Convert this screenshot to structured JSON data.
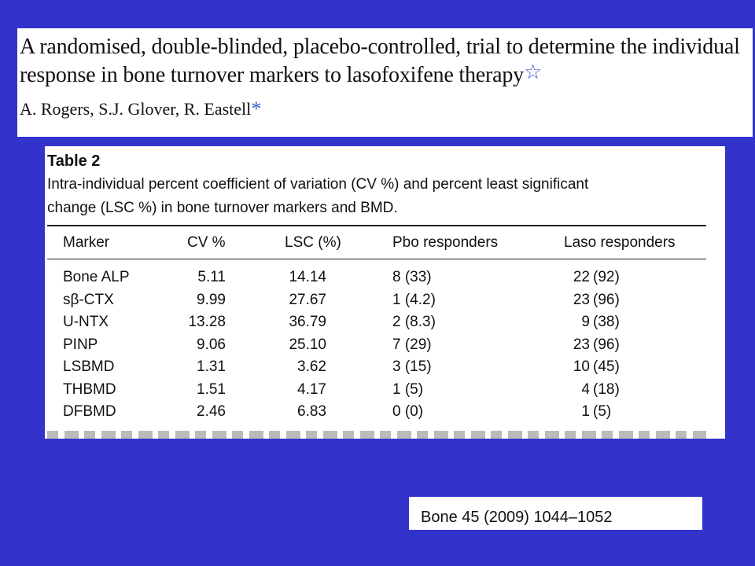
{
  "article": {
    "title_line1": "A randomised, double-blinded, placebo-controlled, trial to determine the individual",
    "title_line2": "response in bone turnover markers to lasofoxifene therapy",
    "title_star": "☆",
    "authors": "A. Rogers, S.J. Glover, R. Eastell",
    "author_asterisk": "*"
  },
  "table": {
    "label": "Table 2",
    "caption_line1": "Intra-individual percent coefficient of variation (CV %) and percent least significant",
    "caption_line2": "change (LSC %) in bone turnover markers and BMD.",
    "headers": [
      "Marker",
      "CV %",
      "LSC (%)",
      "Pbo responders",
      "Laso responders"
    ],
    "rows": [
      {
        "marker": "Bone ALP",
        "cv": "5.11",
        "lsc": "14.14",
        "pbo": "8 (33)",
        "laso_n": "22",
        "laso_p": "(92)"
      },
      {
        "marker": "sβ-CTX",
        "cv": "9.99",
        "lsc": "27.67",
        "pbo": "1 (4.2)",
        "laso_n": "23",
        "laso_p": "(96)"
      },
      {
        "marker": "U-NTX",
        "cv": "13.28",
        "lsc": "36.79",
        "pbo": "2 (8.3)",
        "laso_n": "9",
        "laso_p": "(38)"
      },
      {
        "marker": "PINP",
        "cv": "9.06",
        "lsc": "25.10",
        "pbo": "7 (29)",
        "laso_n": "23",
        "laso_p": "(96)"
      },
      {
        "marker": "LSBMD",
        "cv": "1.31",
        "lsc": "3.62",
        "pbo": "3 (15)",
        "laso_n": "10",
        "laso_p": "(45)"
      },
      {
        "marker": "THBMD",
        "cv": "1.51",
        "lsc": "4.17",
        "pbo": "1 (5)",
        "laso_n": "4",
        "laso_p": "(18)"
      },
      {
        "marker": "DFBMD",
        "cv": "2.46",
        "lsc": "6.83",
        "pbo": "0 (0)",
        "laso_n": "1",
        "laso_p": "(5)"
      }
    ]
  },
  "citation": "Bone 45 (2009) 1044–1052",
  "colors": {
    "background": "#3333cc",
    "panel": "#ffffff",
    "accent": "#3b5fc4"
  }
}
